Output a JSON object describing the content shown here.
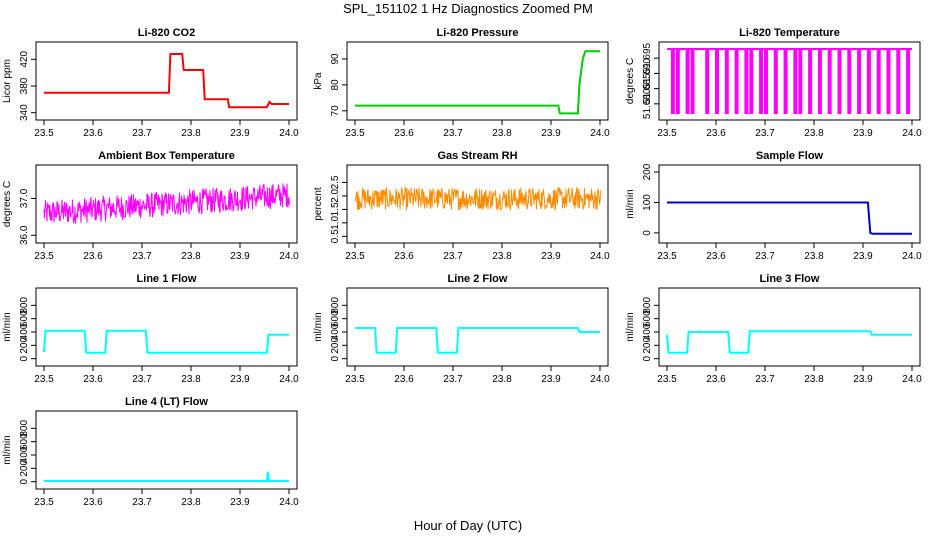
{
  "figure": {
    "title": "SPL_151102  1 Hz Diagnostics Zoomed PM",
    "xlabel": "Hour of Day (UTC)"
  },
  "chart_data": [
    {
      "type": "line",
      "title": "Li-820 CO2",
      "ylabel": "Licor ppm",
      "color": "#ff0000",
      "xlim": [
        23.5,
        24.0
      ],
      "ylim": [
        335,
        440
      ],
      "xticks": [
        "23.5",
        "23.6",
        "23.7",
        "23.8",
        "23.9",
        "24.0"
      ],
      "yticks": [
        340,
        380,
        420
      ],
      "x": [
        23.5,
        23.755,
        23.758,
        23.782,
        23.785,
        23.825,
        23.828,
        23.875,
        23.878,
        23.955,
        23.96,
        23.965,
        24.0
      ],
      "y": [
        370,
        370,
        428,
        428,
        404,
        404,
        360,
        360,
        348,
        348,
        356,
        353,
        353
      ]
    },
    {
      "type": "line",
      "title": "Li-820 Pressure",
      "ylabel": "kPa",
      "color": "#00cc00",
      "xlim": [
        23.5,
        24.0
      ],
      "ylim": [
        68,
        95
      ],
      "xticks": [
        "23.5",
        "23.6",
        "23.7",
        "23.8",
        "23.9",
        "24.0"
      ],
      "yticks": [
        70,
        80,
        90
      ],
      "x": [
        23.5,
        23.915,
        23.918,
        23.955,
        23.958,
        23.965,
        23.97,
        24.0
      ],
      "y": [
        72,
        72,
        69,
        69,
        80,
        90,
        93,
        93
      ]
    },
    {
      "type": "line",
      "title": "Li-820 Temperature",
      "ylabel": "degrees C",
      "color": "#ff00ff",
      "xlim": [
        23.5,
        24.0
      ],
      "ylim": [
        51.676,
        51.699
      ],
      "xticks": [
        "23.5",
        "23.6",
        "23.7",
        "23.8",
        "23.9",
        "24.0"
      ],
      "yticks": [
        51.68,
        51.685,
        51.69,
        51.695
      ],
      "yticklabels": [
        "51.680",
        "51.685",
        "51.690",
        "51.695"
      ],
      "base": 51.698,
      "low": 51.677,
      "drops": [
        23.51,
        23.52,
        23.54,
        23.55,
        23.58,
        23.6,
        23.62,
        23.64,
        23.66,
        23.67,
        23.69,
        23.7,
        23.72,
        23.74,
        23.76,
        23.77,
        23.79,
        23.81,
        23.83,
        23.85,
        23.87,
        23.89,
        23.91,
        23.93,
        23.95,
        23.97,
        23.99
      ]
    },
    {
      "type": "line",
      "title": "Ambient Box Temperature",
      "ylabel": "degrees C",
      "color": "#ff00ff",
      "xlim": [
        23.5,
        24.0
      ],
      "ylim": [
        35.9,
        37.8
      ],
      "xticks": [
        "23.5",
        "23.6",
        "23.7",
        "23.8",
        "23.9",
        "24.0"
      ],
      "yticks": [
        36.0,
        37.0
      ],
      "yticklabels": [
        "36.0",
        "37.0"
      ],
      "x": [
        23.5,
        24.0
      ],
      "y_start": 36.6,
      "y_end": 37.1,
      "noise": 0.5
    },
    {
      "type": "line",
      "title": "Gas Stream RH",
      "ylabel": "percent",
      "color": "#ff8c00",
      "xlim": [
        23.5,
        24.0
      ],
      "ylim": [
        0.4,
        3.0
      ],
      "xticks": [
        "23.5",
        "23.6",
        "23.7",
        "23.8",
        "23.9",
        "24.0"
      ],
      "yticks": [
        0.5,
        1.0,
        1.5,
        2.0,
        2.5
      ],
      "yticklabels": [
        "0.5",
        "1.0",
        "1.5",
        "2.0",
        "2.5"
      ],
      "x": [
        23.5,
        24.0
      ],
      "y_start": 1.9,
      "y_end": 1.9,
      "noise": 0.6
    },
    {
      "type": "line",
      "title": "Sample Flow",
      "ylabel": "ml/min",
      "color": "#0000cc",
      "xlim": [
        23.5,
        24.0
      ],
      "ylim": [
        -20,
        210
      ],
      "xticks": [
        "23.5",
        "23.6",
        "23.7",
        "23.8",
        "23.9",
        "24.0"
      ],
      "yticks": [
        0,
        100,
        200
      ],
      "x": [
        23.5,
        23.91,
        23.915,
        23.92,
        24.0
      ],
      "y": [
        100,
        100,
        0,
        -3,
        -3
      ]
    },
    {
      "type": "line",
      "title": "Line 1 Flow",
      "ylabel": "ml/min",
      "color": "#00ffff",
      "xlim": [
        23.5,
        24.0
      ],
      "ylim": [
        -50,
        1000
      ],
      "xticks": [
        "23.5",
        "23.6",
        "23.7",
        "23.8",
        "23.9",
        "24.0"
      ],
      "yticks": [
        0,
        200,
        400,
        600,
        800
      ],
      "x": [
        23.5,
        23.503,
        23.583,
        23.586,
        23.625,
        23.628,
        23.708,
        23.711,
        23.955,
        23.958,
        24.0
      ],
      "y": [
        100,
        420,
        420,
        90,
        90,
        420,
        420,
        90,
        90,
        360,
        360
      ]
    },
    {
      "type": "line",
      "title": "Line 2 Flow",
      "ylabel": "ml/min",
      "color": "#00ffff",
      "xlim": [
        23.5,
        24.0
      ],
      "ylim": [
        -50,
        1000
      ],
      "xticks": [
        "23.5",
        "23.6",
        "23.7",
        "23.8",
        "23.9",
        "24.0"
      ],
      "yticks": [
        0,
        200,
        400,
        600,
        800
      ],
      "x": [
        23.5,
        23.541,
        23.544,
        23.583,
        23.586,
        23.666,
        23.669,
        23.708,
        23.711,
        23.955,
        23.958,
        24.0
      ],
      "y": [
        460,
        460,
        90,
        90,
        460,
        460,
        90,
        90,
        460,
        460,
        400,
        400
      ]
    },
    {
      "type": "line",
      "title": "Line 3 Flow",
      "ylabel": "ml/min",
      "color": "#00ffff",
      "xlim": [
        23.5,
        24.0
      ],
      "ylim": [
        -50,
        1000
      ],
      "xticks": [
        "23.5",
        "23.6",
        "23.7",
        "23.8",
        "23.9",
        "24.0"
      ],
      "yticks": [
        0,
        200,
        400,
        600,
        800
      ],
      "x": [
        23.5,
        23.503,
        23.541,
        23.544,
        23.625,
        23.628,
        23.666,
        23.669,
        23.915,
        23.918,
        24.0
      ],
      "y": [
        360,
        90,
        90,
        400,
        400,
        90,
        90,
        410,
        410,
        360,
        360
      ]
    },
    {
      "type": "line",
      "title": "Line 4 (LT) Flow",
      "ylabel": "ml/min",
      "color": "#00ffff",
      "xlim": [
        23.5,
        24.0
      ],
      "ylim": [
        -50,
        1000
      ],
      "xticks": [
        "23.5",
        "23.6",
        "23.7",
        "23.8",
        "23.9",
        "24.0"
      ],
      "yticks": [
        0,
        200,
        400,
        600,
        800
      ],
      "x": [
        23.5,
        23.955,
        23.957,
        23.959,
        23.961,
        24.0
      ],
      "y": [
        10,
        10,
        150,
        10,
        10,
        10
      ]
    }
  ]
}
